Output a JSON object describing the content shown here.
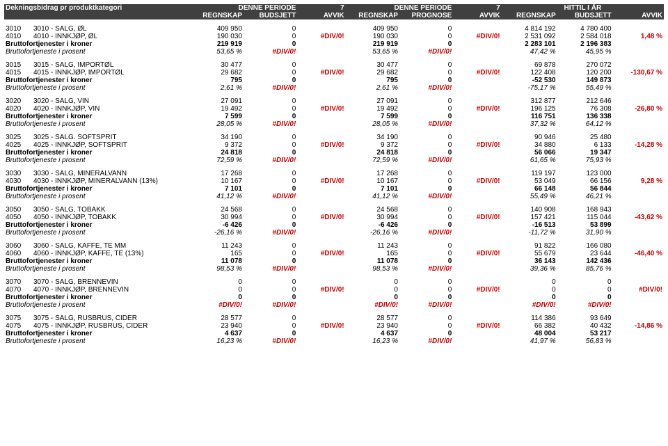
{
  "colors": {
    "headerBg": "#404040",
    "headerFg": "#ffffff",
    "div0": "#c00000",
    "text": "#000000"
  },
  "header": {
    "title": "Dekningsbidrag pr produktkategori",
    "p1": "DENNE PERIODE",
    "p1n": "7",
    "p2": "DENNE PERIODE",
    "p2n": "7",
    "p3": "HITTIL I ÅR",
    "r": "REGNSKAP",
    "b": "BUDSJETT",
    "a": "AVVIK",
    "pr": "PROGNOSE"
  },
  "labels": {
    "bfk": "Bruttofortjenester i kroner",
    "bfp": "Bruttofortjeneste i prosent",
    "div0": "#DIV/0!"
  },
  "groups": [
    {
      "rows": [
        {
          "code": "3010",
          "name": "3010 - SALG, ØL",
          "r1": "409 950",
          "b1": "0",
          "r2": "409 950",
          "p2": "0",
          "r3": "4 814 192",
          "b3": "4 780 400"
        },
        {
          "code": "4010",
          "name": "4010 - INNKJØP, ØL",
          "r1": "190 030",
          "b1": "0",
          "r2": "190 030",
          "p2": "0",
          "r3": "2 531 092",
          "b3": "2 584 018"
        }
      ],
      "tot": {
        "r1": "219 919",
        "b1": "0",
        "r2": "219 919",
        "p2": "0",
        "r3": "2 283 101",
        "b3": "2 196 383"
      },
      "pct": {
        "r1": "53,65 %",
        "b1": "#DIV/0!",
        "r2": "53,65 %",
        "p2": "#DIV/0!",
        "r3": "47,42 %",
        "b3": "45,95 %"
      },
      "avvik3": "1,48 %"
    },
    {
      "rows": [
        {
          "code": "3015",
          "name": "3015 - SALG, IMPORTØL",
          "r1": "30 477",
          "b1": "0",
          "r2": "30 477",
          "p2": "0",
          "r3": "69 878",
          "b3": "270 072"
        },
        {
          "code": "4015",
          "name": "4015 - INNKJØP, IMPORTØL",
          "r1": "29 682",
          "b1": "0",
          "r2": "29 682",
          "p2": "0",
          "r3": "122 408",
          "b3": "120 200"
        }
      ],
      "tot": {
        "r1": "795",
        "b1": "0",
        "r2": "795",
        "p2": "0",
        "r3": "-52 530",
        "b3": "149 873"
      },
      "pct": {
        "r1": "2,61 %",
        "b1": "#DIV/0!",
        "r2": "2,61 %",
        "p2": "#DIV/0!",
        "r3": "-75,17 %",
        "b3": "55,49 %"
      },
      "avvik3": "-130,67 %"
    },
    {
      "rows": [
        {
          "code": "3020",
          "name": "3020 - SALG, VIN",
          "r1": "27 091",
          "b1": "0",
          "r2": "27 091",
          "p2": "0",
          "r3": "312 877",
          "b3": "212 646"
        },
        {
          "code": "4020",
          "name": "4020 - INNKJØP, VIN",
          "r1": "19 492",
          "b1": "0",
          "r2": "19 492",
          "p2": "0",
          "r3": "196 125",
          "b3": "76 308"
        }
      ],
      "tot": {
        "r1": "7 599",
        "b1": "0",
        "r2": "7 599",
        "p2": "0",
        "r3": "116 751",
        "b3": "136 338"
      },
      "pct": {
        "r1": "28,05 %",
        "b1": "#DIV/0!",
        "r2": "28,05 %",
        "p2": "#DIV/0!",
        "r3": "37,32 %",
        "b3": "64,12 %"
      },
      "avvik3": "-26,80 %"
    },
    {
      "rows": [
        {
          "code": "3025",
          "name": "3025 - SALG. SOFTSPRIT",
          "r1": "34 190",
          "b1": "0",
          "r2": "34 190",
          "p2": "0",
          "r3": "90 946",
          "b3": "25 480"
        },
        {
          "code": "4025",
          "name": "4025 - INNKJØP, SOFTSPRIT",
          "r1": "9 372",
          "b1": "0",
          "r2": "9 372",
          "p2": "0",
          "r3": "34 880",
          "b3": "6 133"
        }
      ],
      "tot": {
        "r1": "24 818",
        "b1": "0",
        "r2": "24 818",
        "p2": "0",
        "r3": "56 066",
        "b3": "19 347"
      },
      "pct": {
        "r1": "72,59 %",
        "b1": "#DIV/0!",
        "r2": "72,59 %",
        "p2": "#DIV/0!",
        "r3": "61,65 %",
        "b3": "75,93 %"
      },
      "avvik3": "-14,28 %"
    },
    {
      "rows": [
        {
          "code": "3030",
          "name": "3030 - SALG, MINERALVANN",
          "r1": "17 268",
          "b1": "0",
          "r2": "17 268",
          "p2": "0",
          "r3": "119 197",
          "b3": "123 000"
        },
        {
          "code": "4030",
          "name": "4030 - INNKJØP, MINERALVANN (13%)",
          "r1": "10 167",
          "b1": "0",
          "r2": "10 167",
          "p2": "0",
          "r3": "53 049",
          "b3": "66 156"
        }
      ],
      "tot": {
        "r1": "7 101",
        "b1": "0",
        "r2": "7 101",
        "p2": "0",
        "r3": "66 148",
        "b3": "56 844"
      },
      "pct": {
        "r1": "41,12 %",
        "b1": "#DIV/0!",
        "r2": "41,12 %",
        "p2": "#DIV/0!",
        "r3": "55,49 %",
        "b3": "46,21 %"
      },
      "avvik3": "9,28 %"
    },
    {
      "rows": [
        {
          "code": "3050",
          "name": "3050 - SALG, TOBAKK",
          "r1": "24 568",
          "b1": "0",
          "r2": "24 568",
          "p2": "0",
          "r3": "140 908",
          "b3": "168 943"
        },
        {
          "code": "4050",
          "name": "4050 - INNKJØP, TOBAKK",
          "r1": "30 994",
          "b1": "0",
          "r2": "30 994",
          "p2": "0",
          "r3": "157 421",
          "b3": "115 044"
        }
      ],
      "tot": {
        "r1": "-6 426",
        "b1": "0",
        "r2": "-6 426",
        "p2": "0",
        "r3": "-16 513",
        "b3": "53 899"
      },
      "pct": {
        "r1": "-26,16 %",
        "b1": "#DIV/0!",
        "r2": "-26,16 %",
        "p2": "#DIV/0!",
        "r3": "-11,72 %",
        "b3": "31,90 %"
      },
      "avvik3": "-43,62 %"
    },
    {
      "rows": [
        {
          "code": "3060",
          "name": "3060 - SALG, KAFFE, TE MM",
          "r1": "11 243",
          "b1": "0",
          "r2": "11 243",
          "p2": "0",
          "r3": "91 822",
          "b3": "166 080"
        },
        {
          "code": "4060",
          "name": "4060 - INNKJØP, KAFFE, TE (13%)",
          "r1": "165",
          "b1": "0",
          "r2": "165",
          "p2": "0",
          "r3": "55 679",
          "b3": "23 644"
        }
      ],
      "tot": {
        "r1": "11 078",
        "b1": "0",
        "r2": "11 078",
        "p2": "0",
        "r3": "36 143",
        "b3": "142 436"
      },
      "pct": {
        "r1": "98,53 %",
        "b1": "#DIV/0!",
        "r2": "98,53 %",
        "p2": "#DIV/0!",
        "r3": "39,36 %",
        "b3": "85,76 %"
      },
      "avvik3": "-46,40 %"
    },
    {
      "rows": [
        {
          "code": "3070",
          "name": "3070 - SALG, BRENNEVIN",
          "r1": "0",
          "b1": "0",
          "r2": "0",
          "p2": "0",
          "r3": "0",
          "b3": "0"
        },
        {
          "code": "4070",
          "name": "4070 - INNKJØP, BRENNEVIN",
          "r1": "0",
          "b1": "0",
          "r2": "0",
          "p2": "0",
          "r3": "0",
          "b3": "0"
        }
      ],
      "tot": {
        "r1": "0",
        "b1": "0",
        "r2": "0",
        "p2": "0",
        "r3": "0",
        "b3": "0"
      },
      "pct": {
        "r1": "#DIV/0!",
        "b1": "#DIV/0!",
        "r2": "#DIV/0!",
        "p2": "#DIV/0!",
        "r3": "#DIV/0!",
        "b3": "#DIV/0!"
      },
      "avvik3": "#DIV/0!"
    },
    {
      "rows": [
        {
          "code": "3075",
          "name": "3075 - SALG, RUSBRUS, CIDER",
          "r1": "28 577",
          "b1": "0",
          "r2": "28 577",
          "p2": "0",
          "r3": "114 386",
          "b3": "93 649"
        },
        {
          "code": "4075",
          "name": "4075 - INNKJØP, RUSBRUS, CIDER",
          "r1": "23 940",
          "b1": "0",
          "r2": "23 940",
          "p2": "0",
          "r3": "66 382",
          "b3": "40 432"
        }
      ],
      "tot": {
        "r1": "4 637",
        "b1": "0",
        "r2": "4 637",
        "p2": "0",
        "r3": "48 004",
        "b3": "53 217"
      },
      "pct": {
        "r1": "16,23 %",
        "b1": "#DIV/0!",
        "r2": "16,23 %",
        "p2": "#DIV/0!",
        "r3": "41,97 %",
        "b3": "56,83 %"
      },
      "avvik3": "-14,86 %"
    }
  ]
}
